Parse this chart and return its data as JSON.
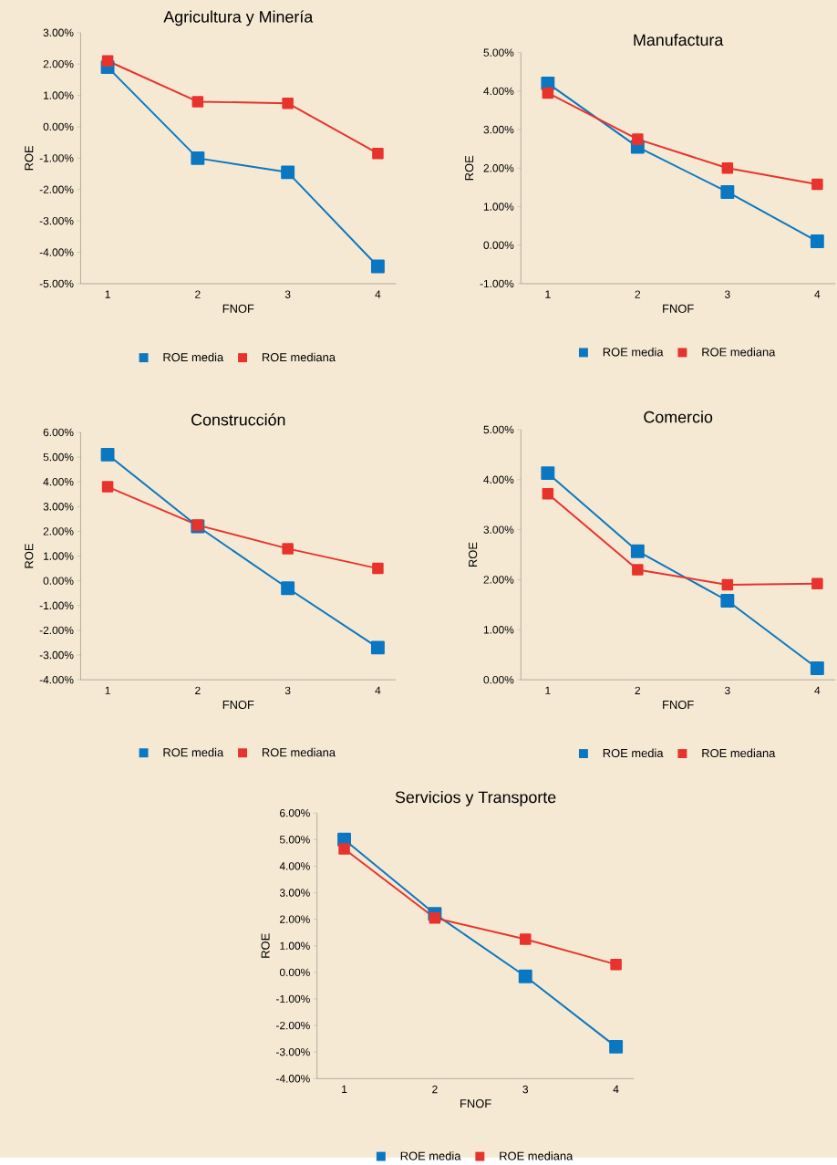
{
  "chart_data": [
    {
      "type": "line",
      "title": "Agricultura y Minería",
      "xlabel": "FNOF",
      "ylabel": "ROE",
      "categories": [
        "1",
        "2",
        "3",
        "4"
      ],
      "ylim": [
        -5,
        3
      ],
      "yticks": [
        {
          "value": -5,
          "label": "-5.00%"
        },
        {
          "value": -4,
          "label": "-4.00%"
        },
        {
          "value": -3,
          "label": "-3.00%"
        },
        {
          "value": -2,
          "label": "-2.00%"
        },
        {
          "value": -1,
          "label": "-1.00%"
        },
        {
          "value": 0,
          "label": "0.00%"
        },
        {
          "value": 1,
          "label": "1.00%"
        },
        {
          "value": 2,
          "label": "2.00%"
        },
        {
          "value": 3,
          "label": "3.00%"
        }
      ],
      "legend": "bottom",
      "marker": "square",
      "series": [
        {
          "name": "ROE media",
          "color": "#0a77c2",
          "values": [
            1.9,
            -1.0,
            -1.45,
            -4.45
          ]
        },
        {
          "name": "ROE mediana",
          "color": "#e8332d",
          "values": [
            2.1,
            0.8,
            0.75,
            -0.85
          ]
        }
      ]
    },
    {
      "type": "line",
      "title": "Manufactura",
      "xlabel": "FNOF",
      "ylabel": "ROE",
      "categories": [
        "1",
        "2",
        "3",
        "4"
      ],
      "ylim": [
        -1,
        5
      ],
      "yticks": [
        {
          "value": -1,
          "label": "-1.00%"
        },
        {
          "value": 0,
          "label": "0.00%"
        },
        {
          "value": 1,
          "label": "1.00%"
        },
        {
          "value": 2,
          "label": "2.00%"
        },
        {
          "value": 3,
          "label": "3.00%"
        },
        {
          "value": 4,
          "label": "4.00%"
        },
        {
          "value": 5,
          "label": "5.00%"
        }
      ],
      "legend": "bottom",
      "marker": "square",
      "series": [
        {
          "name": "ROE media",
          "color": "#0a77c2",
          "values": [
            4.2,
            2.55,
            1.38,
            0.1
          ]
        },
        {
          "name": "ROE mediana",
          "color": "#e8332d",
          "values": [
            3.95,
            2.75,
            2.0,
            1.58
          ]
        }
      ]
    },
    {
      "type": "line",
      "title": "Construcción",
      "xlabel": "FNOF",
      "ylabel": "ROE",
      "categories": [
        "1",
        "2",
        "3",
        "4"
      ],
      "ylim": [
        -4,
        6
      ],
      "yticks": [
        {
          "value": -4,
          "label": "-4.00%"
        },
        {
          "value": -3,
          "label": "-3.00%"
        },
        {
          "value": -2,
          "label": "-2.00%"
        },
        {
          "value": -1,
          "label": "-1.00%"
        },
        {
          "value": 0,
          "label": "0.00%"
        },
        {
          "value": 1,
          "label": "1.00%"
        },
        {
          "value": 2,
          "label": "2.00%"
        },
        {
          "value": 3,
          "label": "3.00%"
        },
        {
          "value": 4,
          "label": "4.00%"
        },
        {
          "value": 5,
          "label": "5.00%"
        },
        {
          "value": 6,
          "label": "6.00%"
        }
      ],
      "legend": "bottom",
      "marker": "square",
      "series": [
        {
          "name": "ROE media",
          "color": "#0a77c2",
          "values": [
            5.1,
            2.2,
            -0.3,
            -2.7
          ]
        },
        {
          "name": "ROE mediana",
          "color": "#e8332d",
          "values": [
            3.8,
            2.25,
            1.3,
            0.5
          ]
        }
      ]
    },
    {
      "type": "line",
      "title": "Comercio",
      "xlabel": "FNOF",
      "ylabel": "ROE",
      "categories": [
        "1",
        "2",
        "3",
        "4"
      ],
      "ylim": [
        0,
        5
      ],
      "yticks": [
        {
          "value": 0,
          "label": "0.00%"
        },
        {
          "value": 1,
          "label": "1.00%"
        },
        {
          "value": 2,
          "label": "2.00%"
        },
        {
          "value": 3,
          "label": "3.00%"
        },
        {
          "value": 4,
          "label": "4.00%"
        },
        {
          "value": 5,
          "label": "5.00%"
        }
      ],
      "legend": "bottom",
      "marker": "square",
      "series": [
        {
          "name": "ROE media",
          "color": "#0a77c2",
          "values": [
            4.13,
            2.57,
            1.58,
            0.23
          ]
        },
        {
          "name": "ROE mediana",
          "color": "#e8332d",
          "values": [
            3.72,
            2.2,
            1.9,
            1.92
          ]
        }
      ]
    },
    {
      "type": "line",
      "title": "Servicios y Transporte",
      "xlabel": "FNOF",
      "ylabel": "ROE",
      "categories": [
        "1",
        "2",
        "3",
        "4"
      ],
      "ylim": [
        -4,
        6
      ],
      "yticks": [
        {
          "value": -4,
          "label": "-4.00%"
        },
        {
          "value": -3,
          "label": "-3.00%"
        },
        {
          "value": -2,
          "label": "-2.00%"
        },
        {
          "value": -1,
          "label": "-1.00%"
        },
        {
          "value": 0,
          "label": "0.00%"
        },
        {
          "value": 1,
          "label": "1.00%"
        },
        {
          "value": 2,
          "label": "2.00%"
        },
        {
          "value": 3,
          "label": "3.00%"
        },
        {
          "value": 4,
          "label": "4.00%"
        },
        {
          "value": 5,
          "label": "5.00%"
        },
        {
          "value": 6,
          "label": "6.00%"
        }
      ],
      "legend": "bottom",
      "marker": "square",
      "series": [
        {
          "name": "ROE media",
          "color": "#0a77c2",
          "values": [
            5.0,
            2.2,
            -0.15,
            -2.8
          ]
        },
        {
          "name": "ROE mediana",
          "color": "#e8332d",
          "values": [
            4.65,
            2.05,
            1.25,
            0.3
          ]
        }
      ]
    }
  ]
}
